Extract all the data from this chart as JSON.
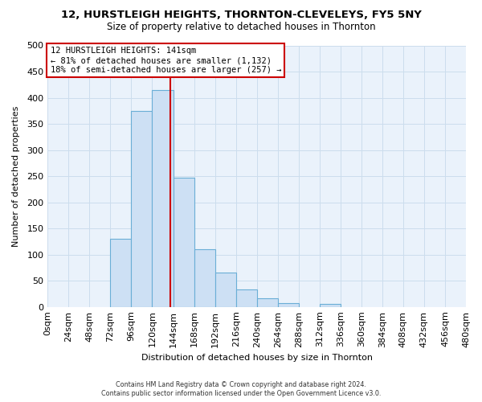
{
  "title": "12, HURSTLEIGH HEIGHTS, THORNTON-CLEVELEYS, FY5 5NY",
  "subtitle": "Size of property relative to detached houses in Thornton",
  "xlabel": "Distribution of detached houses by size in Thornton",
  "ylabel": "Number of detached properties",
  "footer_line1": "Contains HM Land Registry data © Crown copyright and database right 2024.",
  "footer_line2": "Contains public sector information licensed under the Open Government Licence v3.0.",
  "bin_edges": [
    0,
    24,
    48,
    72,
    96,
    120,
    144,
    168,
    192,
    216,
    240,
    264,
    288,
    312,
    336,
    360,
    384,
    408,
    432,
    456,
    480
  ],
  "bin_labels": [
    "0sqm",
    "24sqm",
    "48sqm",
    "72sqm",
    "96sqm",
    "120sqm",
    "144sqm",
    "168sqm",
    "192sqm",
    "216sqm",
    "240sqm",
    "264sqm",
    "288sqm",
    "312sqm",
    "336sqm",
    "360sqm",
    "384sqm",
    "408sqm",
    "432sqm",
    "456sqm",
    "480sqm"
  ],
  "counts": [
    0,
    0,
    0,
    130,
    375,
    415,
    247,
    110,
    65,
    33,
    16,
    7,
    0,
    6,
    0,
    0,
    0,
    0,
    0,
    0
  ],
  "bar_color": "#cde0f4",
  "bar_edge_color": "#6aaed6",
  "grid_color": "#ccdded",
  "background_color": "#eaf2fb",
  "vline_x": 141,
  "vline_color": "#cc0000",
  "annotation_box_text": "12 HURSTLEIGH HEIGHTS: 141sqm\n← 81% of detached houses are smaller (1,132)\n18% of semi-detached houses are larger (257) →",
  "annotation_box_color": "#cc0000",
  "ylim": [
    0,
    500
  ],
  "yticks": [
    0,
    50,
    100,
    150,
    200,
    250,
    300,
    350,
    400,
    450,
    500
  ]
}
